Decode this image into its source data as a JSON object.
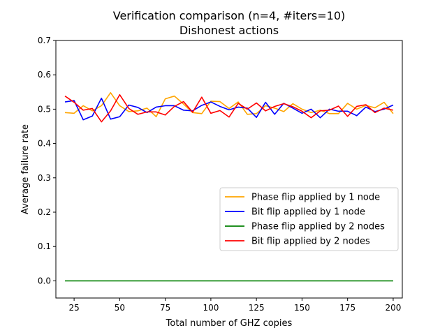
{
  "chart_data": {
    "type": "line",
    "title": "Verification comparison (n=4, #iters=10)",
    "subtitle": "Dishonest actions",
    "xlabel": "Total number of GHZ copies",
    "ylabel": "Average failure rate",
    "xlim": [
      15,
      205
    ],
    "ylim": [
      -0.05,
      0.7
    ],
    "xticks": [
      25,
      50,
      75,
      100,
      125,
      150,
      175,
      200
    ],
    "yticks": [
      0.0,
      0.1,
      0.2,
      0.3,
      0.4,
      0.5,
      0.6,
      0.7
    ],
    "xtick_labels": [
      "25",
      "50",
      "75",
      "100",
      "125",
      "150",
      "175",
      "200"
    ],
    "ytick_labels": [
      "0.0",
      "0.1",
      "0.2",
      "0.3",
      "0.4",
      "0.5",
      "0.6",
      "0.7"
    ],
    "grid": false,
    "legend_position": "center-right",
    "x": [
      20,
      25,
      30,
      35,
      40,
      45,
      50,
      55,
      60,
      65,
      70,
      75,
      80,
      85,
      90,
      95,
      100,
      105,
      110,
      115,
      120,
      125,
      130,
      135,
      140,
      145,
      150,
      155,
      160,
      165,
      170,
      175,
      180,
      185,
      190,
      195,
      200
    ],
    "series": [
      {
        "name": "Phase flip applied by 1 node",
        "color": "#ffa500",
        "values": [
          0.49,
          0.488,
          0.51,
          0.495,
          0.51,
          0.548,
          0.51,
          0.493,
          0.495,
          0.503,
          0.478,
          0.53,
          0.538,
          0.515,
          0.49,
          0.487,
          0.523,
          0.522,
          0.502,
          0.521,
          0.485,
          0.487,
          0.51,
          0.503,
          0.493,
          0.516,
          0.5,
          0.49,
          0.497,
          0.487,
          0.487,
          0.517,
          0.5,
          0.511,
          0.504,
          0.52,
          0.487
        ]
      },
      {
        "name": "Bit flip applied by 1 node",
        "color": "#0000ff",
        "values": [
          0.521,
          0.525,
          0.469,
          0.48,
          0.532,
          0.471,
          0.478,
          0.512,
          0.505,
          0.49,
          0.506,
          0.51,
          0.51,
          0.497,
          0.495,
          0.511,
          0.521,
          0.508,
          0.498,
          0.506,
          0.503,
          0.476,
          0.52,
          0.485,
          0.517,
          0.503,
          0.488,
          0.5,
          0.475,
          0.5,
          0.494,
          0.494,
          0.481,
          0.506,
          0.493,
          0.5,
          0.512
        ]
      },
      {
        "name": "Phase flip applied by 2 nodes",
        "color": "#008000",
        "values": [
          0.0,
          0.0,
          0.0,
          0.0,
          0.0,
          0.0,
          0.0,
          0.0,
          0.0,
          0.0,
          0.0,
          0.0,
          0.0,
          0.0,
          0.0,
          0.0,
          0.0,
          0.0,
          0.0,
          0.0,
          0.0,
          0.0,
          0.0,
          0.0,
          0.0,
          0.0,
          0.0,
          0.0,
          0.0,
          0.0,
          0.0,
          0.0,
          0.0,
          0.0,
          0.0,
          0.0,
          0.0
        ]
      },
      {
        "name": "Bit flip applied by 2 nodes",
        "color": "#ff0000",
        "values": [
          0.538,
          0.52,
          0.497,
          0.502,
          0.463,
          0.495,
          0.542,
          0.502,
          0.485,
          0.492,
          0.492,
          0.483,
          0.508,
          0.522,
          0.491,
          0.535,
          0.488,
          0.496,
          0.477,
          0.517,
          0.5,
          0.518,
          0.495,
          0.508,
          0.516,
          0.507,
          0.494,
          0.475,
          0.495,
          0.497,
          0.509,
          0.479,
          0.508,
          0.513,
          0.49,
          0.503,
          0.497
        ]
      }
    ]
  }
}
